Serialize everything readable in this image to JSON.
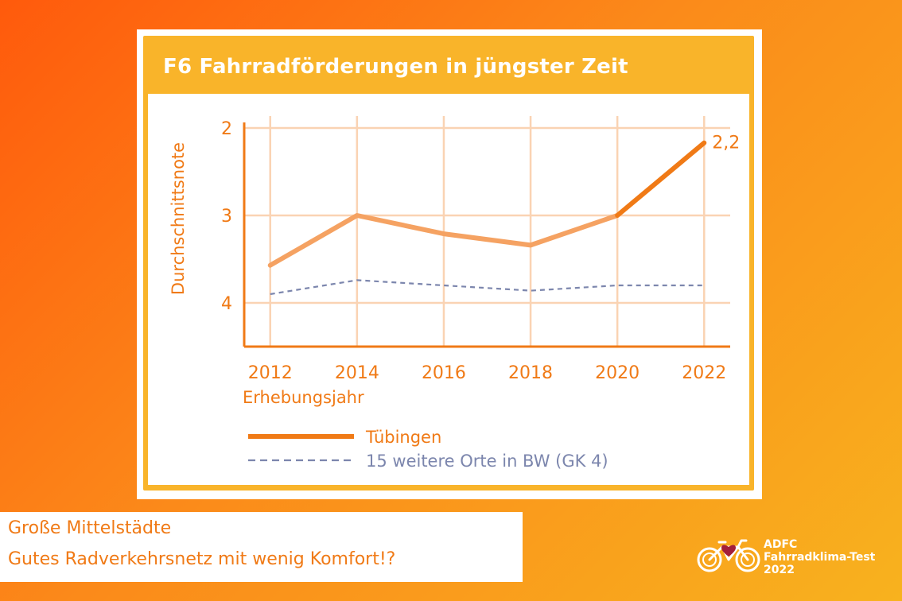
{
  "title": "F6 Fahrradförderungen in jüngster Zeit",
  "caption": {
    "line1": "Große Mittelstädte",
    "line2": "Gutes Radverkehrsnetz mit wenig Komfort!?"
  },
  "logo": {
    "line1": "ADFC",
    "line2": "Fahrradklima-Test",
    "line3": "2022",
    "icon": "bicycle-heart-icon"
  },
  "colors": {
    "background_start": "#ff5a0c",
    "background_end": "#f8b21e",
    "card": "#f9b42a",
    "axis": "#f07a16",
    "grid": "#fad3b3",
    "series_main": "#f5a262",
    "series_main_end": "#f07a16",
    "series_compare": "#7c86ad"
  },
  "chart_data": {
    "type": "line",
    "xlabel": "Erhebungsjahr",
    "ylabel": "Durchschnittsnote",
    "x": [
      2012,
      2014,
      2016,
      2018,
      2020,
      2022
    ],
    "xticks": [
      "2012",
      "2014",
      "2016",
      "2018",
      "2020",
      "2022"
    ],
    "yticks": [
      "2",
      "3",
      "4"
    ],
    "ylim": [
      4.5,
      1.9
    ],
    "y_inverted": true,
    "grid": true,
    "legend_position": "bottom",
    "series": [
      {
        "name": "Tübingen",
        "style": "solid",
        "values": [
          3.57,
          3.0,
          3.21,
          3.34,
          3.0,
          2.17
        ]
      },
      {
        "name": "15 weitere Orte in BW (GK 4)",
        "style": "dashed",
        "values": [
          3.9,
          3.74,
          3.8,
          3.86,
          3.8,
          3.8
        ]
      }
    ],
    "annotations": [
      {
        "series": 0,
        "index": 5,
        "text": "2,2"
      }
    ]
  }
}
